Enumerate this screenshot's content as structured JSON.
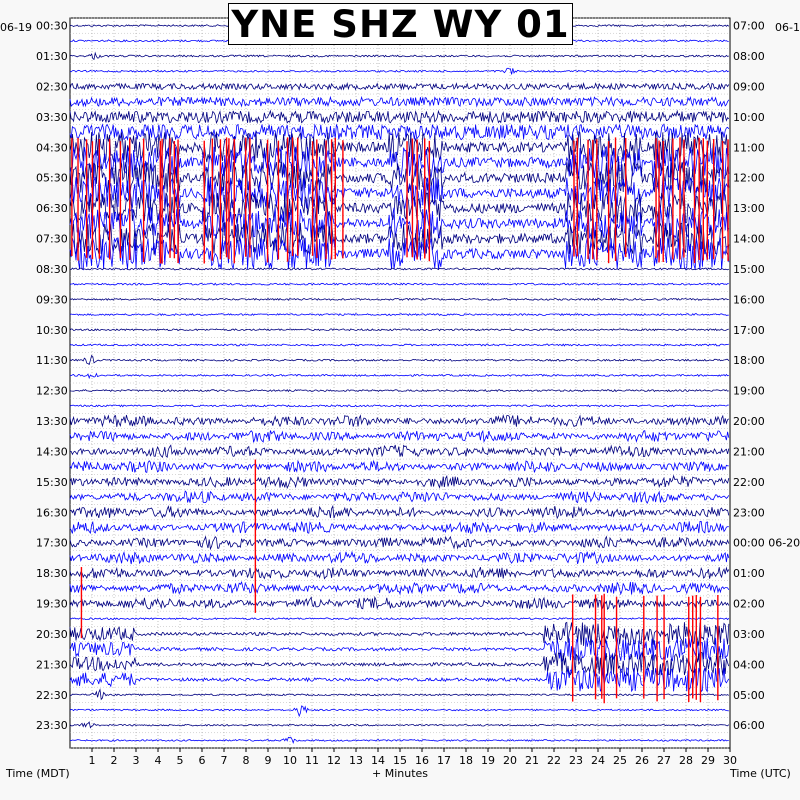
{
  "title": "YNE SHZ WY 01",
  "date_left": "06-19",
  "date_right": "06-1",
  "left_axis_title": "Time (MDT)",
  "right_axis_title": "Time (UTC)",
  "x_axis_title": "+ Minutes",
  "chart_data": {
    "type": "helicorder",
    "title": "YNE SHZ WY 01",
    "xlabel": "+ Minutes",
    "ylabel_left": "Time (MDT)",
    "ylabel_right": "Time (UTC)",
    "x_range": [
      0,
      30
    ],
    "x_ticks": [
      "1",
      "2",
      "3",
      "4",
      "5",
      "6",
      "7",
      "8",
      "9",
      "10",
      "11",
      "12",
      "13",
      "14",
      "15",
      "16",
      "17",
      "18",
      "19",
      "20",
      "21",
      "22",
      "23",
      "24",
      "25",
      "26",
      "27",
      "28",
      "29",
      "30"
    ],
    "left_ticks": [
      "00:30",
      "01:30",
      "02:30",
      "03:30",
      "04:30",
      "05:30",
      "06:30",
      "07:30",
      "08:30",
      "09:30",
      "10:30",
      "11:30",
      "12:30",
      "13:30",
      "14:30",
      "15:30",
      "16:30",
      "17:30",
      "18:30",
      "19:30",
      "20:30",
      "21:30",
      "22:30",
      "23:30"
    ],
    "right_ticks": [
      "07:00",
      "08:00",
      "09:00",
      "10:00",
      "11:00",
      "12:00",
      "13:00",
      "14:00",
      "15:00",
      "16:00",
      "17:00",
      "18:00",
      "19:00",
      "20:00",
      "21:00",
      "22:00",
      "23:00",
      "00:00 06-20",
      "01:00",
      "02:00",
      "03:00",
      "04:00",
      "05:00",
      "06:00"
    ],
    "trace_count": 48,
    "trace_colors": [
      "#000080",
      "#0000ff"
    ],
    "clip_color": "#ff0000",
    "grid": true,
    "legend": "none"
  }
}
